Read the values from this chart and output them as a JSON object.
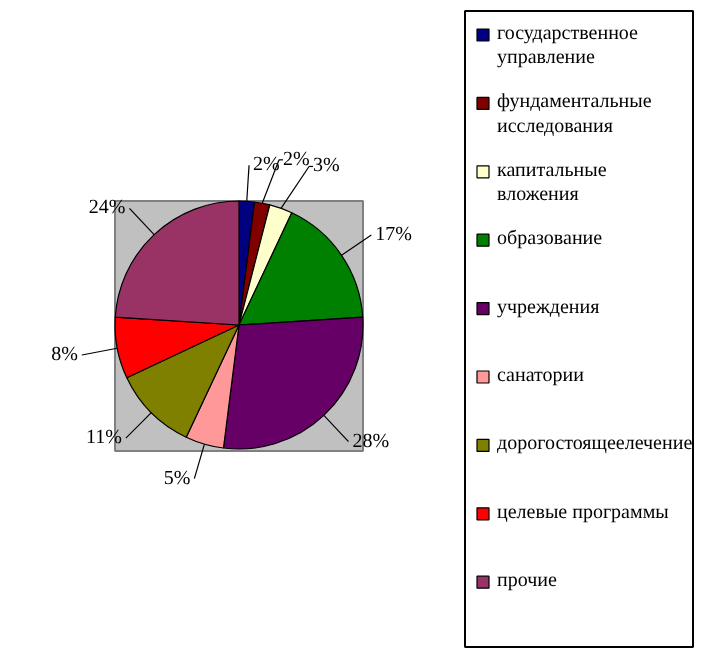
{
  "chart_data": {
    "type": "pie",
    "categories": [
      "государственное управление",
      "фундаментальные исследования",
      "капитальные вложения",
      "образование",
      "учреждения",
      "санатории",
      "дорогостоящеелечение",
      "целевые программы",
      "прочие"
    ],
    "values": [
      2,
      2,
      3,
      17,
      28,
      5,
      11,
      8,
      24
    ],
    "value_labels": [
      "2%",
      "2%",
      "3%",
      "17%",
      "28%",
      "5%",
      "11%",
      "8%",
      "24%"
    ],
    "colors": [
      "#000080",
      "#800000",
      "#ffffcc",
      "#008000",
      "#660066",
      "#ff9999",
      "#808000",
      "#ff0000",
      "#993366"
    ],
    "legend": "right"
  }
}
